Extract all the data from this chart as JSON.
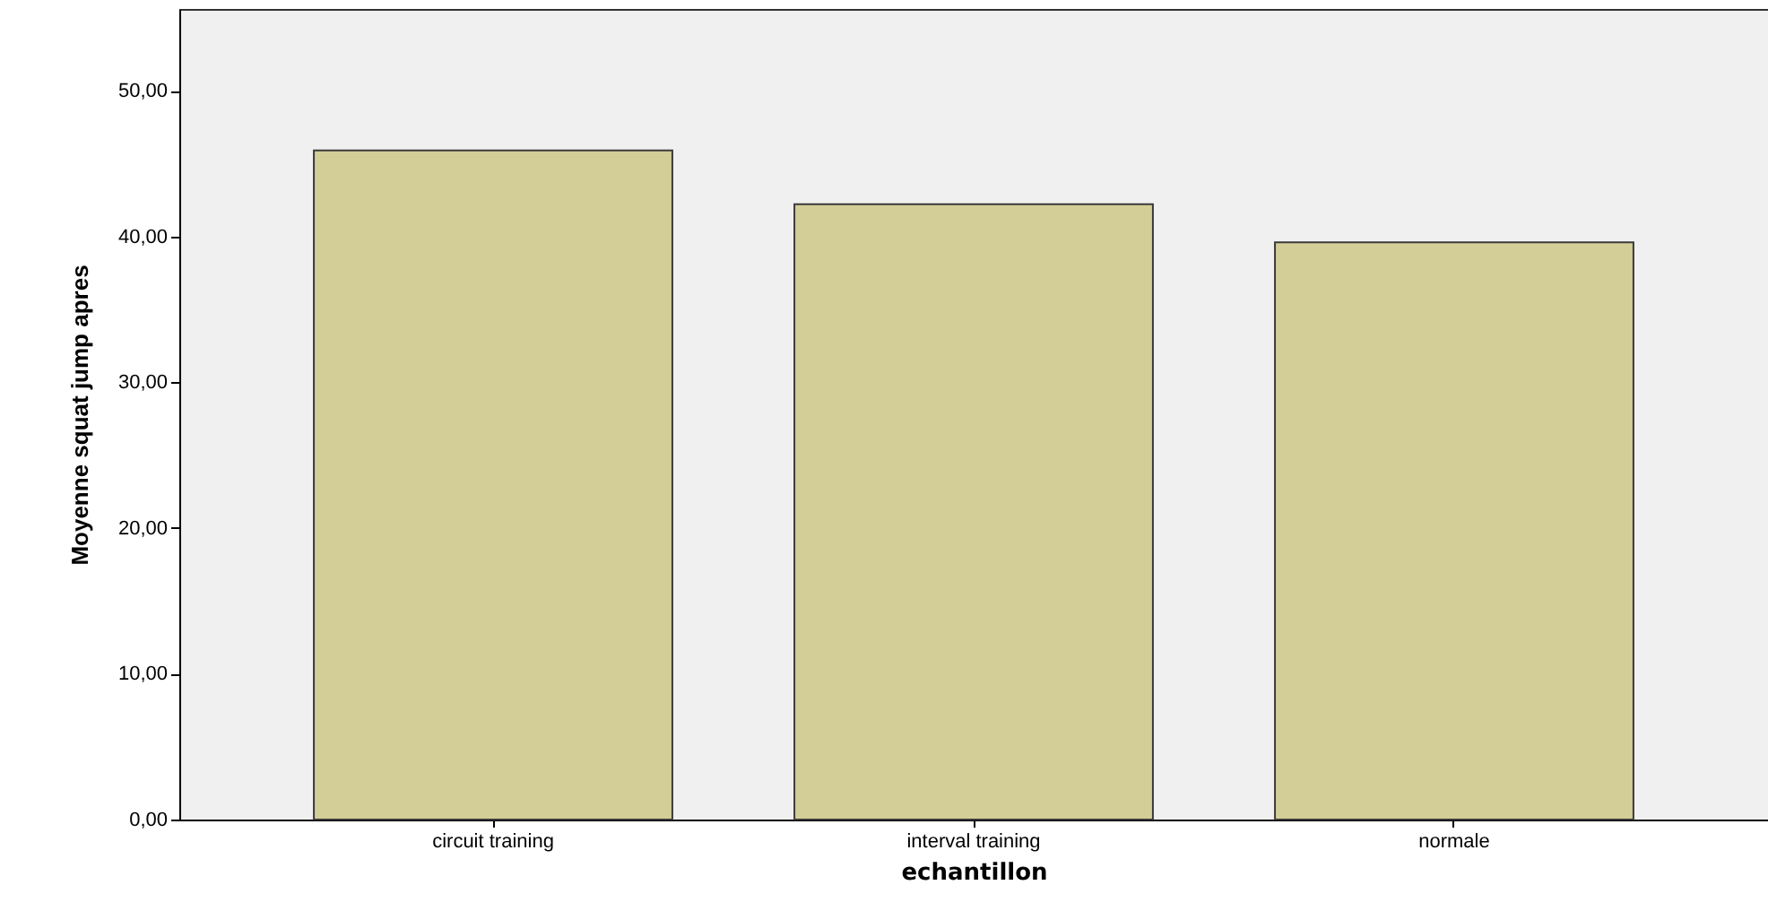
{
  "chart_data": {
    "type": "bar",
    "xlabel": "echantillon",
    "ylabel": "Moyenne squat  jump apres",
    "categories": [
      "circuit training",
      "interval training",
      "normale"
    ],
    "values": [
      45.9,
      42.2,
      39.6
    ],
    "color": "#d3ce97",
    "ylim": [
      0,
      55.6
    ],
    "yticks": [
      {
        "value": 0,
        "label": "0,00"
      },
      {
        "value": 10,
        "label": "10,00"
      },
      {
        "value": 20,
        "label": "20,00"
      },
      {
        "value": 30,
        "label": "30,00"
      },
      {
        "value": 40,
        "label": "40,00"
      },
      {
        "value": 50,
        "label": "50,00"
      }
    ],
    "grid": false
  }
}
